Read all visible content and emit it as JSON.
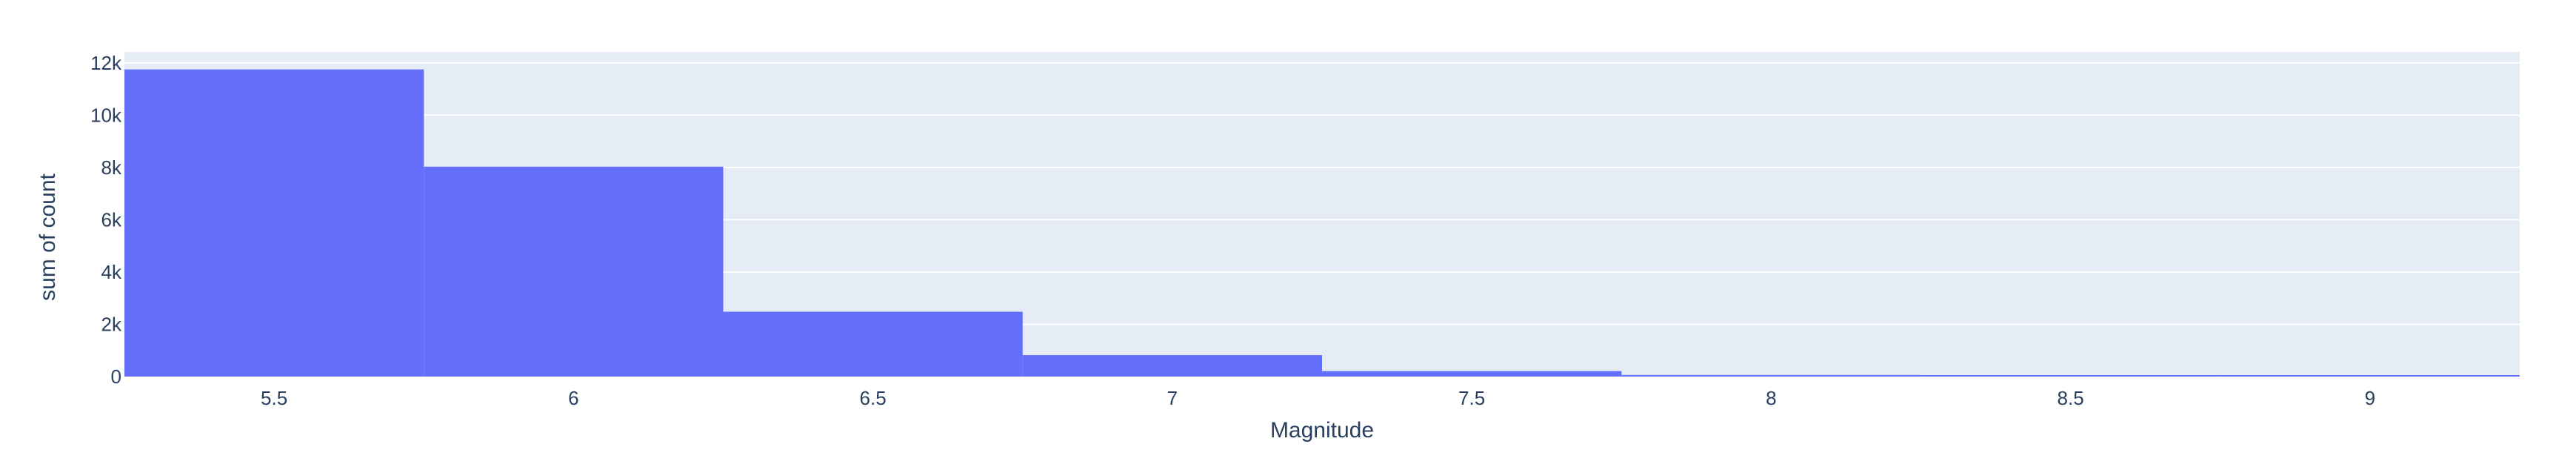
{
  "chart_data": {
    "type": "bar",
    "title": "",
    "xlabel": "Magnitude",
    "ylabel": "sum of count",
    "bin_edges": [
      5.25,
      5.75,
      6.25,
      6.75,
      7.25,
      7.75,
      8.25,
      8.75,
      9.25
    ],
    "bins": [
      {
        "center": 5.5,
        "value": 11750
      },
      {
        "center": 6.0,
        "value": 8030
      },
      {
        "center": 6.5,
        "value": 2480
      },
      {
        "center": 7.0,
        "value": 820
      },
      {
        "center": 7.5,
        "value": 210
      },
      {
        "center": 8.0,
        "value": 60
      },
      {
        "center": 8.5,
        "value": 10
      },
      {
        "center": 9.0,
        "value": 5
      }
    ],
    "xlim": [
      5.25,
      9.25
    ],
    "ylim": [
      0,
      12420
    ],
    "x_ticks": [
      {
        "value": 5.5,
        "label": "5.5"
      },
      {
        "value": 6.0,
        "label": "6"
      },
      {
        "value": 6.5,
        "label": "6.5"
      },
      {
        "value": 7.0,
        "label": "7"
      },
      {
        "value": 7.5,
        "label": "7.5"
      },
      {
        "value": 8.0,
        "label": "8"
      },
      {
        "value": 8.5,
        "label": "8.5"
      },
      {
        "value": 9.0,
        "label": "9"
      }
    ],
    "y_ticks": [
      {
        "value": 0,
        "label": "0"
      },
      {
        "value": 2000,
        "label": "2k"
      },
      {
        "value": 4000,
        "label": "4k"
      },
      {
        "value": 6000,
        "label": "6k"
      },
      {
        "value": 8000,
        "label": "8k"
      },
      {
        "value": 10000,
        "label": "10k"
      },
      {
        "value": 12000,
        "label": "12k"
      }
    ],
    "grid": true,
    "bar_color": "#636efa",
    "plot_bg_color": "#e5ecf6",
    "grid_color": "#ffffff",
    "text_color": "#2a3f5f"
  }
}
